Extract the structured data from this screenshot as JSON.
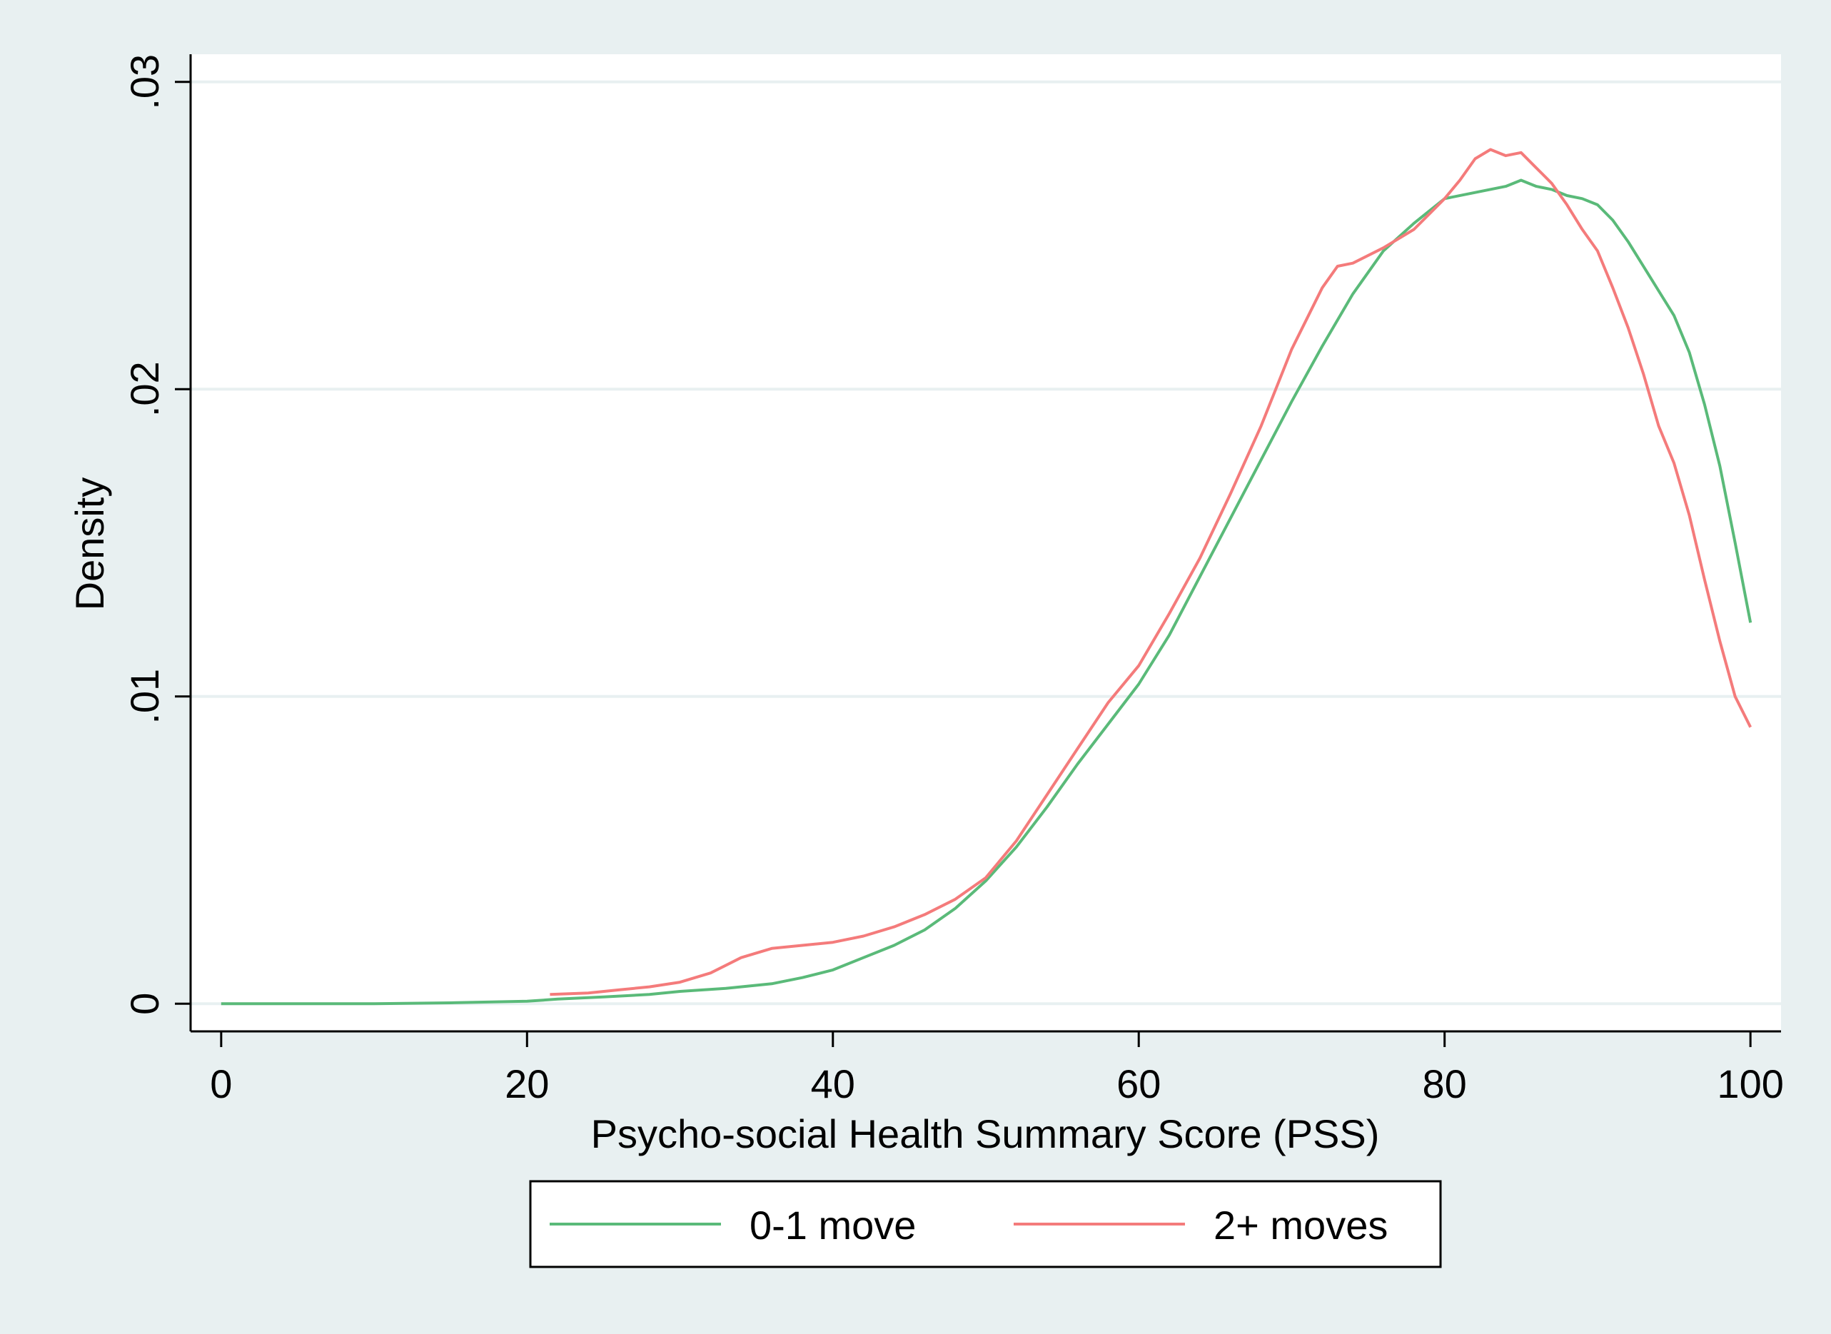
{
  "chart_data": {
    "type": "line",
    "title": "",
    "xlabel": "Psycho-social Health Summary Score (PSS)",
    "ylabel": "Density",
    "xlim": [
      -2,
      102
    ],
    "ylim": [
      -0.0009,
      0.0309
    ],
    "x_ticks": [
      0,
      20,
      40,
      60,
      80,
      100
    ],
    "x_tick_labels": [
      "0",
      "20",
      "40",
      "60",
      "80",
      "100"
    ],
    "y_ticks": [
      0,
      0.01,
      0.02,
      0.03
    ],
    "y_tick_labels": [
      "0",
      ".01",
      ".02",
      ".03"
    ],
    "grid": "horizontal",
    "legend_position": "bottom",
    "colors": {
      "outer_background": "#e8f0f1",
      "plot_background": "#ffffff",
      "grid": "#e8f0f1",
      "axis": "#000000",
      "series_0_1": "#5aba79",
      "series_2plus": "#f47b7b"
    },
    "series": [
      {
        "name": "0-1 move",
        "color": "#5aba79",
        "x": [
          0,
          10,
          15,
          20,
          22,
          25,
          28,
          30,
          33,
          36,
          38,
          40,
          42,
          44,
          46,
          48,
          50,
          52,
          54,
          56,
          58,
          60,
          62,
          64,
          66,
          68,
          70,
          72,
          74,
          76,
          78,
          80,
          82,
          84,
          85,
          86,
          87,
          88,
          89,
          90,
          91,
          92,
          93,
          94,
          95,
          96,
          97,
          98,
          99,
          100
        ],
        "values": [
          0,
          0,
          3e-05,
          8e-05,
          0.00015,
          0.00022,
          0.0003,
          0.0004,
          0.0005,
          0.00065,
          0.00085,
          0.0011,
          0.0015,
          0.0019,
          0.0024,
          0.0031,
          0.004,
          0.0051,
          0.0064,
          0.0078,
          0.0091,
          0.0104,
          0.012,
          0.0139,
          0.0158,
          0.0177,
          0.0196,
          0.0214,
          0.0231,
          0.0245,
          0.0254,
          0.0262,
          0.0264,
          0.0266,
          0.0268,
          0.0266,
          0.0265,
          0.0263,
          0.0262,
          0.026,
          0.0255,
          0.0248,
          0.024,
          0.0232,
          0.0224,
          0.0212,
          0.0195,
          0.0175,
          0.015,
          0.0124
        ]
      },
      {
        "name": "2+ moves",
        "color": "#f47b7b",
        "x": [
          21.5,
          24,
          26,
          28,
          30,
          32,
          34,
          36,
          38,
          40,
          42,
          44,
          46,
          48,
          50,
          52,
          54,
          56,
          58,
          60,
          62,
          64,
          66,
          68,
          70,
          72,
          73,
          74,
          76,
          78,
          80,
          81,
          82,
          83,
          84,
          85,
          86,
          87,
          88,
          89,
          90,
          91,
          92,
          93,
          94,
          95,
          96,
          97,
          98,
          99,
          100
        ],
        "values": [
          0.0003,
          0.00035,
          0.00045,
          0.00055,
          0.0007,
          0.001,
          0.0015,
          0.0018,
          0.0019,
          0.002,
          0.0022,
          0.0025,
          0.0029,
          0.0034,
          0.0041,
          0.0053,
          0.0068,
          0.0083,
          0.0098,
          0.011,
          0.0127,
          0.0145,
          0.0166,
          0.0188,
          0.0213,
          0.0233,
          0.024,
          0.0241,
          0.0246,
          0.0252,
          0.0262,
          0.0268,
          0.0275,
          0.0278,
          0.0276,
          0.0277,
          0.0272,
          0.0267,
          0.026,
          0.0252,
          0.0245,
          0.0233,
          0.022,
          0.0205,
          0.0188,
          0.0176,
          0.0159,
          0.0138,
          0.0118,
          0.01,
          0.009
        ]
      }
    ]
  }
}
